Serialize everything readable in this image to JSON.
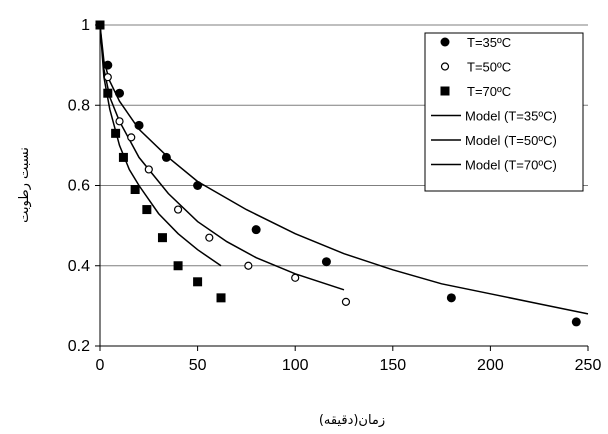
{
  "chart_data": {
    "type": "scatter",
    "xlabel": "زمان(دقیقه)",
    "ylabel": "نسبت رطوبت",
    "xlim": [
      0,
      250
    ],
    "ylim": [
      0.2,
      1
    ],
    "xticks": [
      0,
      50,
      100,
      150,
      200,
      250
    ],
    "yticks": [
      0.2,
      0.4,
      0.6,
      0.8,
      1
    ],
    "ytick_labels": [
      "0.2",
      "0.4",
      "0.6",
      "0.8",
      "1"
    ],
    "grid": "horizontal",
    "legend_position": "top-right",
    "series": [
      {
        "name": "T=35ºC",
        "marker": "filled-circle",
        "x": [
          0,
          4,
          10,
          20,
          34,
          50,
          80,
          116,
          180,
          244
        ],
        "y": [
          1.0,
          0.9,
          0.83,
          0.75,
          0.67,
          0.6,
          0.49,
          0.41,
          0.32,
          0.26
        ]
      },
      {
        "name": "T=50ºC",
        "marker": "open-circle",
        "x": [
          0,
          4,
          10,
          16,
          25,
          40,
          56,
          76,
          100,
          126
        ],
        "y": [
          1.0,
          0.87,
          0.76,
          0.72,
          0.64,
          0.54,
          0.47,
          0.4,
          0.37,
          0.31
        ]
      },
      {
        "name": "T=70ºC",
        "marker": "filled-square",
        "x": [
          0,
          4,
          8,
          12,
          18,
          24,
          32,
          40,
          50,
          62
        ],
        "y": [
          1.0,
          0.83,
          0.73,
          0.67,
          0.59,
          0.54,
          0.47,
          0.4,
          0.36,
          0.32
        ]
      }
    ],
    "models": [
      {
        "name": "Model (T=35ºC)",
        "x": [
          0,
          2,
          5,
          10,
          20,
          35,
          50,
          75,
          100,
          125,
          150,
          175,
          200,
          225,
          250
        ],
        "y": [
          1.0,
          0.91,
          0.86,
          0.81,
          0.74,
          0.67,
          0.61,
          0.54,
          0.48,
          0.43,
          0.39,
          0.355,
          0.33,
          0.305,
          0.28
        ]
      },
      {
        "name": "Model (T=50ºC)",
        "x": [
          0,
          2,
          5,
          10,
          20,
          35,
          50,
          65,
          80,
          100,
          125
        ],
        "y": [
          1.0,
          0.89,
          0.82,
          0.76,
          0.67,
          0.58,
          0.51,
          0.46,
          0.42,
          0.38,
          0.34
        ]
      },
      {
        "name": "Model (T=70ºC)",
        "x": [
          0,
          2,
          5,
          10,
          15,
          20,
          30,
          40,
          50,
          62
        ],
        "y": [
          1.0,
          0.87,
          0.79,
          0.7,
          0.64,
          0.6,
          0.53,
          0.48,
          0.44,
          0.4
        ]
      }
    ]
  }
}
